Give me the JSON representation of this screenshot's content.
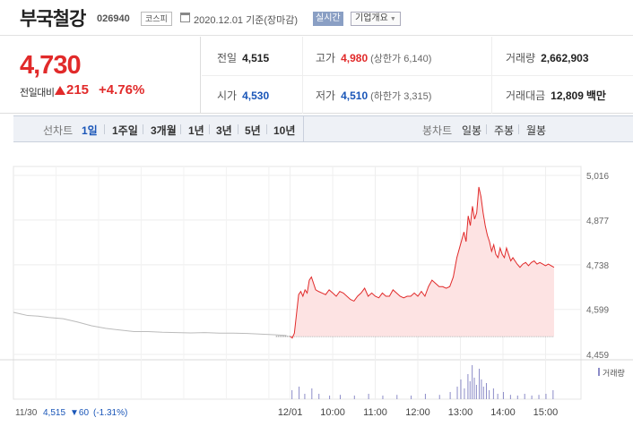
{
  "header": {
    "stock_name": "부국철강",
    "stock_code": "026940",
    "market_badge": "코스피",
    "date_text": "2020.12.01  기준(장마감)",
    "live_badge": "실시간",
    "company_button": "기업개요"
  },
  "summary": {
    "current_price": "4,730",
    "change_label": "전일대비",
    "change_value": "215",
    "change_percent": "+4.76%",
    "prev_close": {
      "label": "전일",
      "value": "4,515"
    },
    "open": {
      "label": "시가",
      "value": "4,530"
    },
    "high": {
      "label": "고가",
      "value": "4,980",
      "sub": "(상한가 6,140)"
    },
    "low": {
      "label": "저가",
      "value": "4,510",
      "sub": "(하한가 3,315)"
    },
    "volume": {
      "label": "거래량",
      "value": "2,662,903"
    },
    "trade_value": {
      "label": "거래대금",
      "value": "12,809",
      "unit": "백만"
    }
  },
  "tabs": {
    "line_label": "선차트",
    "line_tabs": [
      "1일",
      "1주일",
      "3개월",
      "1년",
      "3년",
      "5년",
      "10년"
    ],
    "active_index": 0,
    "candle_label": "봉차트",
    "candle_tabs": [
      "일봉",
      "주봉",
      "월봉"
    ]
  },
  "colors": {
    "up": "#e12a2a",
    "down": "#1a56b8",
    "fill": "#fde3e3",
    "prev_line": "#bbbbbb",
    "volume": "#8c8cc8"
  },
  "chart_data": {
    "type": "line",
    "y_ticks": [
      "5,016",
      "4,877",
      "4,738",
      "4,599",
      "4,459"
    ],
    "y_tick_values": [
      5016,
      4877,
      4738,
      4599,
      4459
    ],
    "ylim": [
      4459,
      5016
    ],
    "x_ticks": [
      "12/01",
      "10:00",
      "11:00",
      "12:00",
      "13:00",
      "14:00",
      "15:00"
    ],
    "x_tick_minutes": [
      0,
      60,
      120,
      180,
      240,
      300,
      360
    ],
    "xlim_minutes": [
      -390,
      410
    ],
    "base_price": 4515,
    "volume_legend": "거래량",
    "prev_day": {
      "label_date": "11/30",
      "label_price": "4,515",
      "label_change": "▼60",
      "label_percent": "(-1.31%)",
      "series": [
        [
          -390,
          4590
        ],
        [
          -380,
          4585
        ],
        [
          -370,
          4580
        ],
        [
          -355,
          4578
        ],
        [
          -340,
          4574
        ],
        [
          -320,
          4570
        ],
        [
          -300,
          4560
        ],
        [
          -280,
          4548
        ],
        [
          -260,
          4540
        ],
        [
          -240,
          4535
        ],
        [
          -220,
          4530
        ],
        [
          -200,
          4530
        ],
        [
          -180,
          4528
        ],
        [
          -160,
          4527
        ],
        [
          -140,
          4526
        ],
        [
          -120,
          4527
        ],
        [
          -100,
          4525
        ],
        [
          -80,
          4525
        ],
        [
          -60,
          4524
        ],
        [
          -40,
          4522
        ],
        [
          -20,
          4520
        ],
        [
          -5,
          4518
        ]
      ]
    },
    "today": {
      "series": [
        [
          0,
          4515
        ],
        [
          3,
          4510
        ],
        [
          6,
          4525
        ],
        [
          9,
          4585
        ],
        [
          12,
          4645
        ],
        [
          15,
          4655
        ],
        [
          18,
          4640
        ],
        [
          21,
          4660
        ],
        [
          24,
          4650
        ],
        [
          27,
          4690
        ],
        [
          30,
          4700
        ],
        [
          33,
          4680
        ],
        [
          36,
          4660
        ],
        [
          40,
          4655
        ],
        [
          45,
          4650
        ],
        [
          50,
          4645
        ],
        [
          55,
          4660
        ],
        [
          60,
          4650
        ],
        [
          65,
          4640
        ],
        [
          70,
          4655
        ],
        [
          75,
          4650
        ],
        [
          80,
          4640
        ],
        [
          85,
          4630
        ],
        [
          90,
          4625
        ],
        [
          95,
          4640
        ],
        [
          100,
          4650
        ],
        [
          105,
          4665
        ],
        [
          110,
          4640
        ],
        [
          115,
          4650
        ],
        [
          120,
          4640
        ],
        [
          125,
          4635
        ],
        [
          130,
          4650
        ],
        [
          135,
          4640
        ],
        [
          140,
          4640
        ],
        [
          145,
          4660
        ],
        [
          150,
          4650
        ],
        [
          155,
          4640
        ],
        [
          160,
          4635
        ],
        [
          165,
          4640
        ],
        [
          170,
          4640
        ],
        [
          175,
          4650
        ],
        [
          180,
          4640
        ],
        [
          185,
          4655
        ],
        [
          190,
          4640
        ],
        [
          195,
          4670
        ],
        [
          200,
          4690
        ],
        [
          205,
          4680
        ],
        [
          210,
          4670
        ],
        [
          215,
          4670
        ],
        [
          220,
          4665
        ],
        [
          225,
          4670
        ],
        [
          230,
          4700
        ],
        [
          235,
          4760
        ],
        [
          240,
          4800
        ],
        [
          245,
          4840
        ],
        [
          248,
          4810
        ],
        [
          251,
          4890
        ],
        [
          254,
          4860
        ],
        [
          257,
          4920
        ],
        [
          260,
          4880
        ],
        [
          263,
          4900
        ],
        [
          266,
          4980
        ],
        [
          269,
          4950
        ],
        [
          272,
          4900
        ],
        [
          275,
          4860
        ],
        [
          278,
          4830
        ],
        [
          281,
          4810
        ],
        [
          284,
          4780
        ],
        [
          287,
          4800
        ],
        [
          290,
          4770
        ],
        [
          293,
          4760
        ],
        [
          296,
          4790
        ],
        [
          299,
          4770
        ],
        [
          302,
          4760
        ],
        [
          305,
          4790
        ],
        [
          308,
          4770
        ],
        [
          311,
          4750
        ],
        [
          314,
          4760
        ],
        [
          317,
          4750
        ],
        [
          320,
          4740
        ],
        [
          324,
          4730
        ],
        [
          328,
          4740
        ],
        [
          332,
          4745
        ],
        [
          336,
          4735
        ],
        [
          340,
          4745
        ],
        [
          344,
          4750
        ],
        [
          348,
          4740
        ],
        [
          352,
          4745
        ],
        [
          356,
          4740
        ],
        [
          360,
          4735
        ],
        [
          364,
          4740
        ],
        [
          368,
          4735
        ],
        [
          372,
          4730
        ]
      ]
    },
    "volume_bars": [
      [
        2,
        0.25
      ],
      [
        12,
        0.35
      ],
      [
        20,
        0.15
      ],
      [
        30,
        0.3
      ],
      [
        40,
        0.15
      ],
      [
        55,
        0.1
      ],
      [
        70,
        0.12
      ],
      [
        90,
        0.1
      ],
      [
        110,
        0.15
      ],
      [
        130,
        0.1
      ],
      [
        150,
        0.12
      ],
      [
        170,
        0.1
      ],
      [
        190,
        0.15
      ],
      [
        210,
        0.12
      ],
      [
        225,
        0.2
      ],
      [
        235,
        0.35
      ],
      [
        240,
        0.55
      ],
      [
        245,
        0.3
      ],
      [
        250,
        0.7
      ],
      [
        253,
        0.5
      ],
      [
        256,
        0.95
      ],
      [
        259,
        0.6
      ],
      [
        262,
        0.4
      ],
      [
        266,
        0.85
      ],
      [
        269,
        0.55
      ],
      [
        272,
        0.35
      ],
      [
        276,
        0.45
      ],
      [
        280,
        0.25
      ],
      [
        286,
        0.3
      ],
      [
        292,
        0.15
      ],
      [
        300,
        0.2
      ],
      [
        310,
        0.12
      ],
      [
        320,
        0.1
      ],
      [
        330,
        0.15
      ],
      [
        340,
        0.1
      ],
      [
        350,
        0.12
      ],
      [
        360,
        0.15
      ],
      [
        370,
        0.25
      ]
    ]
  }
}
